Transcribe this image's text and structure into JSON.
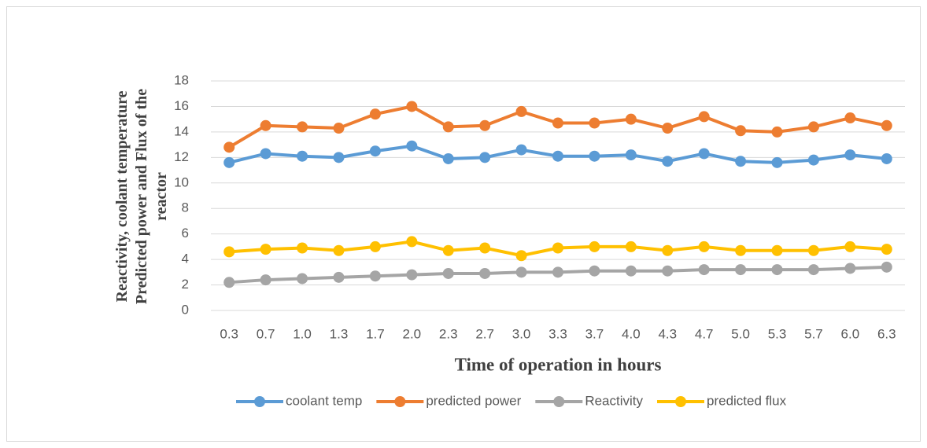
{
  "chart_data": {
    "type": "line",
    "ylabel": "Reactivity, coolant temperature Predicted power and Flux  of the reactor",
    "xlabel": "Time of operation in hours",
    "categories": [
      "0.3",
      "0.7",
      "1.0",
      "1.3",
      "1.7",
      "2.0",
      "2.3",
      "2.7",
      "3.0",
      "3.3",
      "3.7",
      "4.0",
      "4.3",
      "4.7",
      "5.0",
      "5.3",
      "5.7",
      "6.0",
      "6.3"
    ],
    "series": [
      {
        "name": "coolant temp",
        "color": "#5b9bd5",
        "values": [
          11.6,
          12.3,
          12.1,
          12.0,
          12.5,
          12.9,
          11.9,
          12.0,
          12.6,
          12.1,
          12.1,
          12.2,
          11.7,
          12.3,
          11.7,
          11.6,
          11.8,
          12.2,
          11.9
        ]
      },
      {
        "name": "predicted power",
        "color": "#ed7d31",
        "values": [
          12.8,
          14.5,
          14.4,
          14.3,
          15.4,
          16.0,
          14.4,
          14.5,
          15.6,
          14.7,
          14.7,
          15.0,
          14.3,
          15.2,
          14.1,
          14.0,
          14.4,
          15.1,
          14.5
        ]
      },
      {
        "name": "Reactivity",
        "color": "#a5a5a5",
        "values": [
          2.2,
          2.4,
          2.5,
          2.6,
          2.7,
          2.8,
          2.9,
          2.9,
          3.0,
          3.0,
          3.1,
          3.1,
          3.1,
          3.2,
          3.2,
          3.2,
          3.2,
          3.3,
          3.4
        ]
      },
      {
        "name": "predicted flux",
        "color": "#ffc000",
        "values": [
          4.6,
          4.8,
          4.9,
          4.7,
          5.0,
          5.4,
          4.7,
          4.9,
          4.3,
          4.9,
          5.0,
          5.0,
          4.7,
          5.0,
          4.7,
          4.7,
          4.7,
          5.0,
          4.8
        ]
      }
    ],
    "ylim": [
      0,
      18
    ],
    "yticks": [
      0,
      2,
      4,
      6,
      8,
      10,
      12,
      14,
      16,
      18
    ],
    "grid": true,
    "legend": "bottom"
  }
}
